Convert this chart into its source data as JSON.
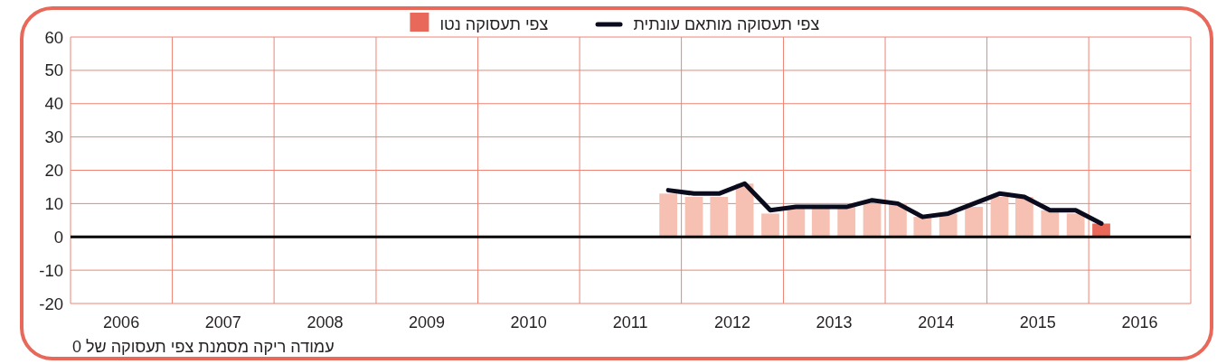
{
  "chart_data": {
    "type": "bar",
    "x": [
      "2011-11-15",
      "2012-02-15",
      "2012-05-15",
      "2012-08-15",
      "2012-11-15",
      "2013-02-15",
      "2013-05-15",
      "2013-08-15",
      "2013-11-15",
      "2014-02-15",
      "2014-05-15",
      "2014-08-15",
      "2014-11-15",
      "2015-02-15",
      "2015-05-15",
      "2015-08-15",
      "2015-11-15",
      "2016-02-15"
    ],
    "series": [
      {
        "name": "צפי תעסוקה מותאם עונתית",
        "type": "line",
        "color": "#0b0b1e",
        "values": [
          14,
          13,
          13,
          16,
          8,
          9,
          9,
          9,
          11,
          10,
          6,
          7,
          10,
          13,
          12,
          8,
          8,
          4
        ]
      },
      {
        "name": "צפי תעסוקה נטו",
        "color": "#e8695a",
        "colors": [
          "#f6c1b2",
          "#f6c1b2",
          "#f6c1b2",
          "#f6c1b2",
          "#f6c1b2",
          "#f6c1b2",
          "#f6c1b2",
          "#f6c1b2",
          "#f6c1b2",
          "#f6c1b2",
          "#f6c1b2",
          "#f6c1b2",
          "#f6c1b2",
          "#f6c1b2",
          "#f6c1b2",
          "#f6c1b2",
          "#f6c1b2",
          "#e8695a"
        ],
        "values": [
          13,
          12,
          12,
          16,
          7,
          9,
          9,
          9,
          10,
          10,
          6,
          7,
          9,
          12,
          12,
          8,
          7,
          4
        ]
      }
    ],
    "xlim": [
      "2006-01-01",
      "2017-01-01"
    ],
    "xticks": [
      {
        "value": "2006-01-01",
        "label": null
      },
      {
        "value": "2006-07-02",
        "label": "2006"
      },
      {
        "value": "2007-01-01",
        "label": null
      },
      {
        "value": "2007-07-02",
        "label": "2007"
      },
      {
        "value": "2008-01-01",
        "label": null
      },
      {
        "value": "2008-07-02",
        "label": "2008"
      },
      {
        "value": "2009-01-01",
        "label": null
      },
      {
        "value": "2009-07-02",
        "label": "2009"
      },
      {
        "value": "2010-01-01",
        "label": null
      },
      {
        "value": "2010-07-02",
        "label": "2010"
      },
      {
        "value": "2011-01-01",
        "label": null
      },
      {
        "value": "2011-07-02",
        "label": "2011"
      },
      {
        "value": "2012-01-01",
        "label": null
      },
      {
        "value": "2012-07-02",
        "label": "2012"
      },
      {
        "value": "2013-01-01",
        "label": null
      },
      {
        "value": "2013-07-02",
        "label": "2013"
      },
      {
        "value": "2014-01-01",
        "label": null
      },
      {
        "value": "2014-07-02",
        "label": "2014"
      },
      {
        "value": "2015-01-01",
        "label": null
      },
      {
        "value": "2015-07-02",
        "label": "2015"
      },
      {
        "value": "2016-01-01",
        "label": null
      },
      {
        "value": "2016-07-02",
        "label": "2016"
      },
      {
        "value": "2017-01-01",
        "label": null
      }
    ],
    "ylim": [
      -20,
      60
    ],
    "yticks": [
      -20,
      -10,
      0,
      10,
      20,
      30,
      40,
      50,
      60
    ],
    "grid": true,
    "legend": "top",
    "ref_lines": [
      {
        "axis": "y",
        "value": 0,
        "color": "#000000"
      }
    ],
    "annotations": [
      "עמודה ריקה מסמנת צפי תעסוקה של 0"
    ]
  }
}
